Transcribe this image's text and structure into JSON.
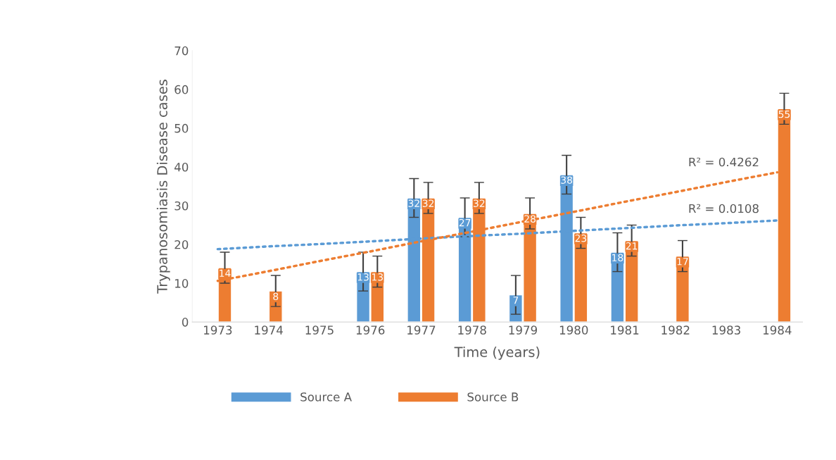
{
  "chart_data": {
    "type": "bar",
    "xlabel": "Time (years)",
    "ylabel": "Trypanosomiasis Disease cases",
    "categories": [
      "1973",
      "1974",
      "1975",
      "1976",
      "1977",
      "1978",
      "1979",
      "1980",
      "1981",
      "1982",
      "1983",
      "1984"
    ],
    "series": [
      {
        "name": "Source A",
        "color": "#5b9bd5",
        "values": [
          null,
          null,
          null,
          13,
          32,
          27,
          7,
          38,
          18,
          null,
          null,
          null
        ],
        "errors": [
          null,
          null,
          null,
          5,
          5,
          5,
          5,
          5,
          5,
          null,
          null,
          null
        ],
        "value_labels": [
          null,
          null,
          null,
          "13",
          "32",
          "27",
          "7",
          "38",
          "18",
          null,
          null,
          null
        ]
      },
      {
        "name": "Source B",
        "color": "#ed7d31",
        "values": [
          14,
          8,
          null,
          13,
          32,
          32,
          28,
          23,
          21,
          17,
          null,
          55
        ],
        "errors": [
          4,
          4,
          null,
          4,
          4,
          4,
          4,
          4,
          4,
          4,
          null,
          4
        ],
        "value_labels": [
          "14",
          "8",
          null,
          "13",
          "32",
          "32",
          "28",
          "23",
          "21",
          "17",
          null,
          "55"
        ]
      },
      {
        "type": "line",
        "color": "#5b9bd5",
        "line_style": "dotted",
        "values": [
          18.8,
          19.5,
          20.1,
          20.8,
          21.5,
          22.2,
          22.8,
          23.5,
          24.2,
          24.9,
          25.5,
          26.2
        ]
      },
      {
        "type": "line",
        "color": "#ed7d31",
        "line_style": "dotted",
        "values": [
          10.6,
          13.1,
          15.7,
          18.2,
          20.8,
          23.3,
          25.9,
          28.4,
          31.0,
          33.5,
          36.1,
          38.6
        ]
      }
    ],
    "annotations": [
      {
        "text": "R² = 0.4262",
        "x": "1984",
        "y": 41
      },
      {
        "text": "R² = 0.0108",
        "x": "1984",
        "y": 29
      }
    ],
    "ylim": [
      0,
      70
    ],
    "yticks": [
      0,
      10,
      20,
      30,
      40,
      50,
      60,
      70
    ],
    "legend": "bottom",
    "grid": false
  }
}
